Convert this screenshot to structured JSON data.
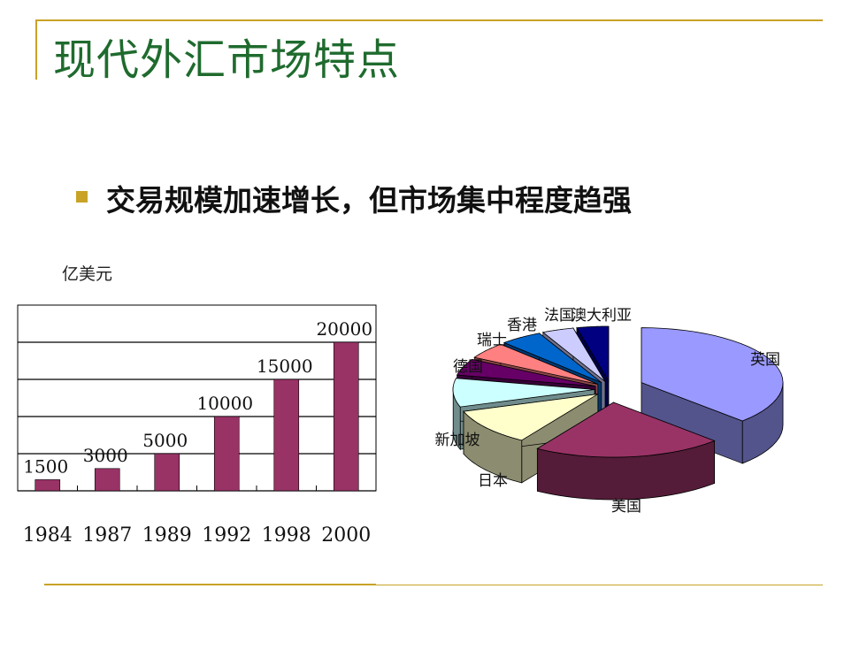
{
  "slide": {
    "title": "现代外汇市场特点",
    "bullet": "交易规模加速增长，但市场集中程度趋强",
    "unit_label": "亿美元"
  },
  "colors": {
    "accent_rule": "#c9a227",
    "title": "#1f6b2e",
    "bullet_square": "#c9a227",
    "bar": "#993366"
  },
  "chart_data": [
    {
      "type": "bar",
      "categories": [
        "1984",
        "1987",
        "1989",
        "1992",
        "1998",
        "2000"
      ],
      "values": [
        1500,
        3000,
        5000,
        10000,
        15000,
        20000
      ],
      "data_labels": [
        "1500",
        "3000",
        "5000",
        "10000",
        "15000",
        "20000"
      ],
      "ylim": [
        0,
        25000
      ],
      "grid": true,
      "ylabel": "亿美元"
    },
    {
      "type": "pie",
      "style": "3d-exploded",
      "labels": [
        "英国",
        "美国",
        "日本",
        "新加坡",
        "瑞士",
        "德国",
        "香港",
        "法国",
        "澳大利亚"
      ],
      "values": [
        31,
        18,
        9,
        7,
        4,
        4,
        4,
        3,
        3
      ],
      "colors": [
        "#9999ff",
        "#993366",
        "#ffffcc",
        "#ccffff",
        "#660066",
        "#ff8080",
        "#0066cc",
        "#ccccff",
        "#000080"
      ]
    }
  ]
}
